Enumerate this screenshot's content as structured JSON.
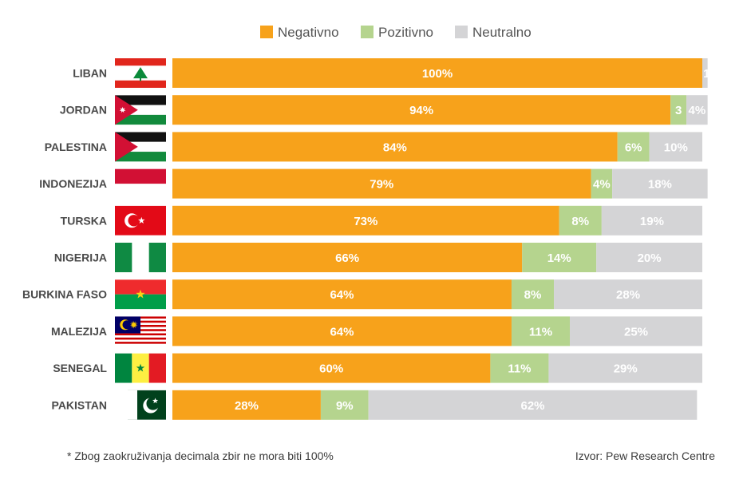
{
  "chart_data": {
    "type": "bar",
    "orientation": "horizontal",
    "stacked": true,
    "categories": [
      "LIBAN",
      "JORDAN",
      "PALESTINA",
      "INDONEZIJA",
      "TURSKA",
      "NIGERIJA",
      "BURKINA FASO",
      "MALEZIJA",
      "SENEGAL",
      "PAKISTAN"
    ],
    "series": [
      {
        "name": "Negativno",
        "color": "#f7a21b",
        "values": [
          100,
          94,
          84,
          79,
          73,
          66,
          64,
          64,
          60,
          28
        ]
      },
      {
        "name": "Pozitivno",
        "color": "#b5d48e",
        "values": [
          0,
          3,
          6,
          4,
          8,
          14,
          8,
          11,
          11,
          9
        ]
      },
      {
        "name": "Neutralno",
        "color": "#d4d4d6",
        "values": [
          1,
          4,
          10,
          18,
          19,
          20,
          28,
          25,
          29,
          62
        ]
      }
    ],
    "segment_labels": [
      [
        "100%",
        "",
        "1"
      ],
      [
        "94%",
        "3",
        "4%"
      ],
      [
        "84%",
        "6%",
        "10%"
      ],
      [
        "79%",
        "4%",
        "18%"
      ],
      [
        "73%",
        "8%",
        "19%"
      ],
      [
        "66%",
        "14%",
        "20%"
      ],
      [
        "64%",
        "8%",
        "28%"
      ],
      [
        "64%",
        "11%",
        "25%"
      ],
      [
        "60%",
        "11%",
        "29%"
      ],
      [
        "28%",
        "9%",
        "62%"
      ]
    ],
    "flags": [
      "lebanon-flag",
      "jordan-flag",
      "palestine-flag",
      "indonesia-flag",
      "turkey-flag",
      "nigeria-flag",
      "burkina-faso-flag",
      "malaysia-flag",
      "senegal-flag",
      "pakistan-flag"
    ],
    "legend_position": "top-center",
    "xlim": [
      0,
      100
    ]
  },
  "footnote": "* Zbog zaokruživanja decimala zbir ne mora biti 100%",
  "source": "Izvor: Pew Research Centre"
}
